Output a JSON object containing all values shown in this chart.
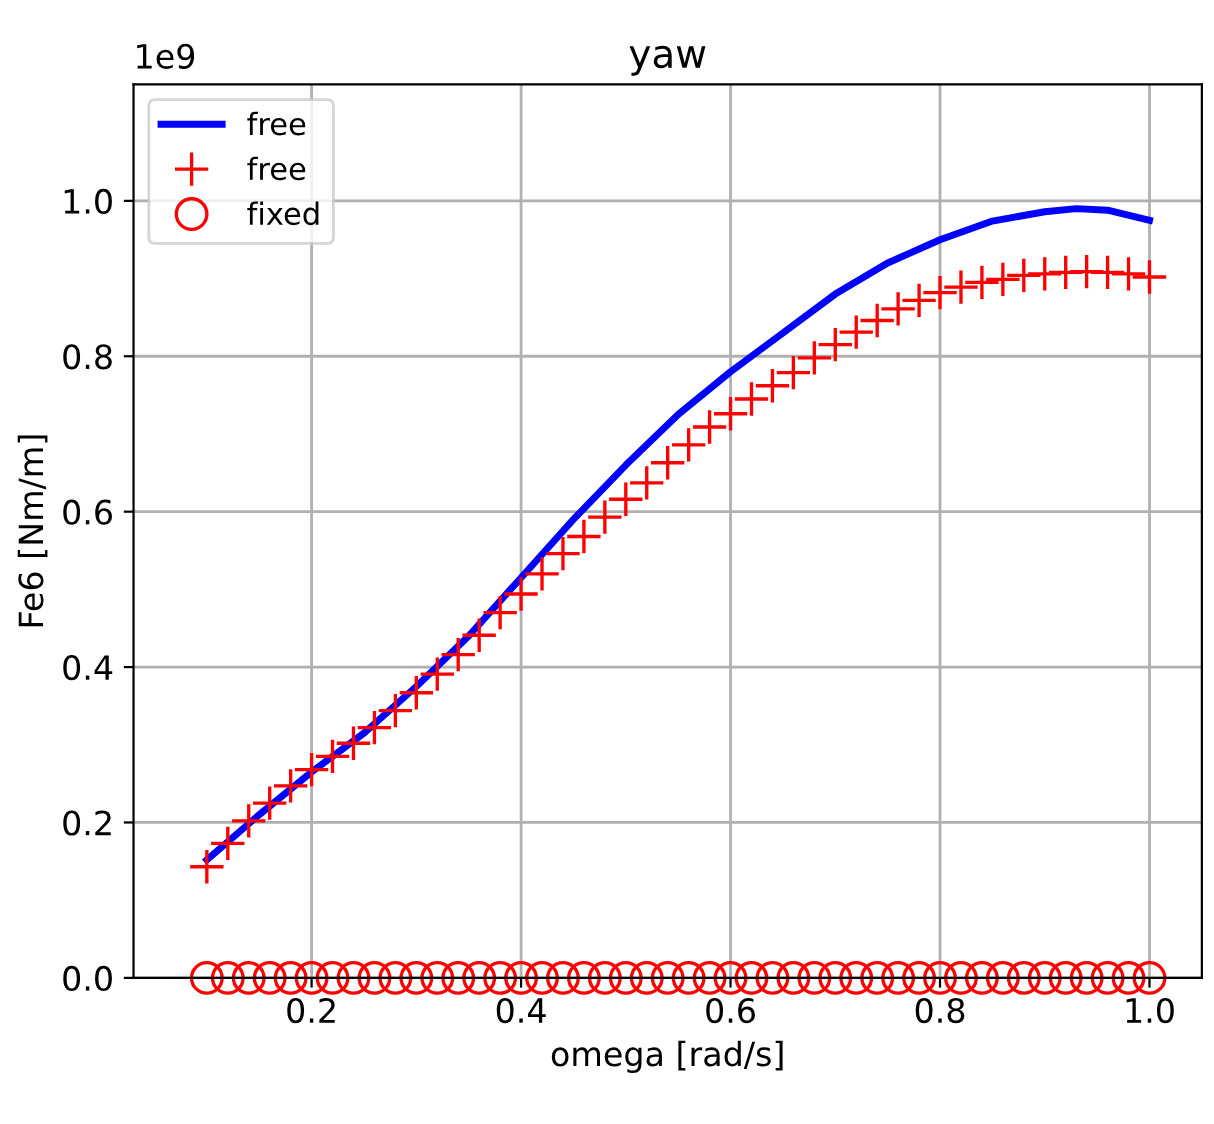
{
  "chart_data": {
    "type": "line",
    "title": "yaw",
    "xlabel": "omega [rad/s]",
    "ylabel": "Fe6 [Nm/m]",
    "annotations": [
      "1e9"
    ],
    "xlim": [
      0.03,
      1.05
    ],
    "ylim": [
      0.0,
      1.15
    ],
    "xticks": [
      0.2,
      0.4,
      0.6,
      0.8,
      {
        "value": 1,
        "label": "1.0"
      }
    ],
    "yticks": [
      {
        "value": 0,
        "label": "0.0"
      },
      0.2,
      0.4,
      0.6,
      0.8,
      {
        "value": 1,
        "label": "1.0"
      }
    ],
    "grid": true,
    "legend": "top left",
    "series": [
      {
        "name": "free",
        "color": "#0000ff",
        "marker": "none",
        "x": [
          0.1,
          0.15,
          0.2,
          0.25,
          0.3,
          0.35,
          0.4,
          0.45,
          0.5,
          0.55,
          0.6,
          0.65,
          0.7,
          0.75,
          0.8,
          0.85,
          0.9,
          0.93,
          0.96,
          1.0
        ],
        "values": [
          0.152,
          0.21,
          0.265,
          0.315,
          0.375,
          0.44,
          0.515,
          0.59,
          0.66,
          0.725,
          0.78,
          0.83,
          0.88,
          0.92,
          0.95,
          0.974,
          0.986,
          0.99,
          0.988,
          0.975
        ]
      },
      {
        "name": "free",
        "type": "scatter",
        "color": "#ff0000",
        "marker": "cross",
        "x": [
          0.1,
          0.12,
          0.14,
          0.16,
          0.18,
          0.2,
          0.22,
          0.24,
          0.26,
          0.28,
          0.3,
          0.32,
          0.34,
          0.36,
          0.38,
          0.4,
          0.42,
          0.44,
          0.46,
          0.48,
          0.5,
          0.52,
          0.54,
          0.56,
          0.58,
          0.6,
          0.62,
          0.64,
          0.66,
          0.68,
          0.7,
          0.72,
          0.74,
          0.76,
          0.78,
          0.8,
          0.82,
          0.84,
          0.86,
          0.88,
          0.9,
          0.92,
          0.94,
          0.96,
          0.98,
          1.0
        ],
        "values": [
          0.143,
          0.173,
          0.202,
          0.225,
          0.247,
          0.268,
          0.285,
          0.302,
          0.322,
          0.344,
          0.367,
          0.391,
          0.416,
          0.441,
          0.47,
          0.494,
          0.52,
          0.546,
          0.568,
          0.593,
          0.616,
          0.637,
          0.663,
          0.686,
          0.709,
          0.726,
          0.745,
          0.762,
          0.779,
          0.798,
          0.815,
          0.831,
          0.846,
          0.861,
          0.872,
          0.882,
          0.889,
          0.895,
          0.899,
          0.904,
          0.906,
          0.908,
          0.909,
          0.908,
          0.906,
          0.902
        ]
      },
      {
        "name": "fixed",
        "type": "scatter",
        "color": "#ff0000",
        "marker": "circle",
        "x": [
          0.1,
          0.12,
          0.14,
          0.16,
          0.18,
          0.2,
          0.22,
          0.24,
          0.26,
          0.28,
          0.3,
          0.32,
          0.34,
          0.36,
          0.38,
          0.4,
          0.42,
          0.44,
          0.46,
          0.48,
          0.5,
          0.52,
          0.54,
          0.56,
          0.58,
          0.6,
          0.62,
          0.64,
          0.66,
          0.68,
          0.7,
          0.72,
          0.74,
          0.76,
          0.78,
          0.8,
          0.82,
          0.84,
          0.86,
          0.88,
          0.9,
          0.92,
          0.94,
          0.96,
          0.98,
          1.0
        ],
        "values": [
          0,
          0,
          0,
          0,
          0,
          0,
          0,
          0,
          0,
          0,
          0,
          0,
          0,
          0,
          0,
          0,
          0,
          0,
          0,
          0,
          0,
          0,
          0,
          0,
          0,
          0,
          0,
          0,
          0,
          0,
          0,
          0,
          0,
          0,
          0,
          0,
          0,
          0,
          0,
          0,
          0,
          0,
          0,
          0,
          0,
          0
        ]
      }
    ]
  }
}
